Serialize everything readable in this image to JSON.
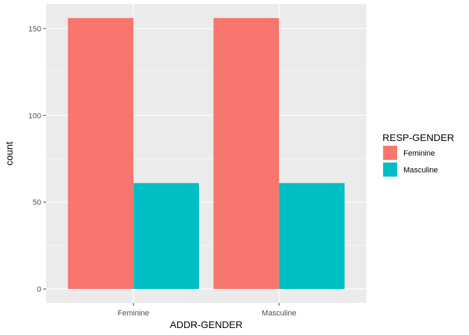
{
  "chart_data": {
    "type": "bar",
    "categories": [
      "Feminine",
      "Masculine"
    ],
    "series": [
      {
        "name": "Feminine",
        "values": [
          156,
          156
        ]
      },
      {
        "name": "Masculine",
        "values": [
          61,
          61
        ]
      }
    ],
    "xlabel": "ADDR-GENDER",
    "ylabel": "count",
    "ylim": [
      -8,
      164
    ],
    "yticks": [
      0,
      50,
      100,
      150
    ],
    "grid": true,
    "legend": {
      "title": "RESP-GENDER",
      "placement": "right"
    },
    "colors": {
      "Feminine": "#F8766D",
      "Masculine": "#00BFC4"
    },
    "panel_background": "#EBEBEB",
    "grid_color": "#FFFFFF"
  }
}
